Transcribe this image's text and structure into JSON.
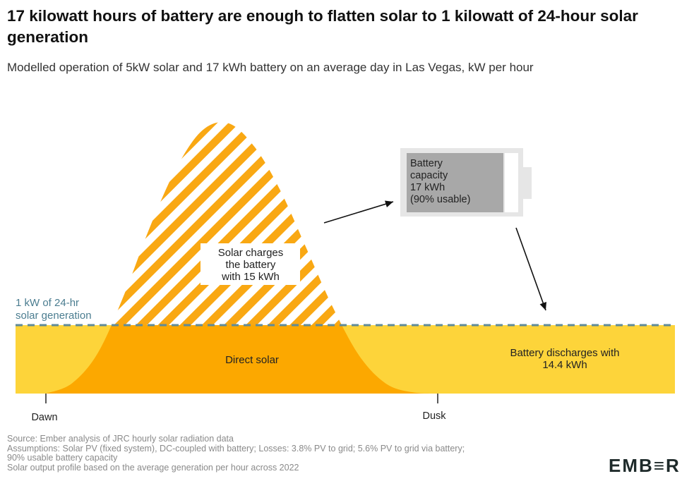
{
  "header": {
    "title": "17 kilowatt hours of battery are enough to flatten solar to 1 kilowatt of 24-hour solar generation",
    "subtitle": "Modelled operation of 5kW solar and 17 kWh battery on an average day in Las Vegas, kW per hour"
  },
  "chart_data": {
    "type": "area",
    "title": "17 kilowatt hours of battery are enough to flatten solar to 1 kilowatt of 24-hour solar generation",
    "subtitle": "Modelled operation of 5kW solar and 17 kWh battery on an average day in Las Vegas, kW per hour",
    "x_labels": [
      "Dawn",
      "Dusk"
    ],
    "flat_line_kw": 1,
    "flat_line_label": "1 kW of 24-hr solar generation",
    "solar_profile": {
      "hours_after_dawn": [
        0,
        1,
        2,
        3,
        4,
        5,
        6,
        7,
        8,
        9,
        10,
        11,
        12,
        13,
        14,
        15
      ],
      "kw": [
        0,
        0.15,
        0.6,
        1.45,
        2.45,
        3.3,
        3.85,
        3.95,
        3.6,
        2.95,
        2.1,
        1.25,
        0.55,
        0.15,
        0.02,
        0
      ]
    },
    "colors": {
      "direct_solar": "#fca800",
      "battery_charge_stripe": "#f9a813",
      "battery_discharge": "#fdd43a",
      "flat_line": "#5f8b99",
      "battery_body": "#a8a8a8"
    },
    "annotations": {
      "charge": [
        "Solar charges",
        "the battery",
        "with 15 kWh"
      ],
      "direct": "Direct solar",
      "discharge": [
        "Battery discharges with",
        "14.4 kWh"
      ],
      "battery": [
        "Battery",
        "capacity",
        "17 kWh",
        "(90% usable)"
      ]
    }
  },
  "footer": {
    "notes": [
      "Source: Ember analysis of JRC hourly solar radiation data",
      "Assumptions: Solar PV (fixed system), DC-coupled with battery; Losses: 3.8% PV to grid; 5.6% PV to grid via battery;",
      "90% usable battery capacity",
      "Solar output profile based on the average generation per hour across 2022"
    ],
    "logo": "EMB≡R"
  }
}
